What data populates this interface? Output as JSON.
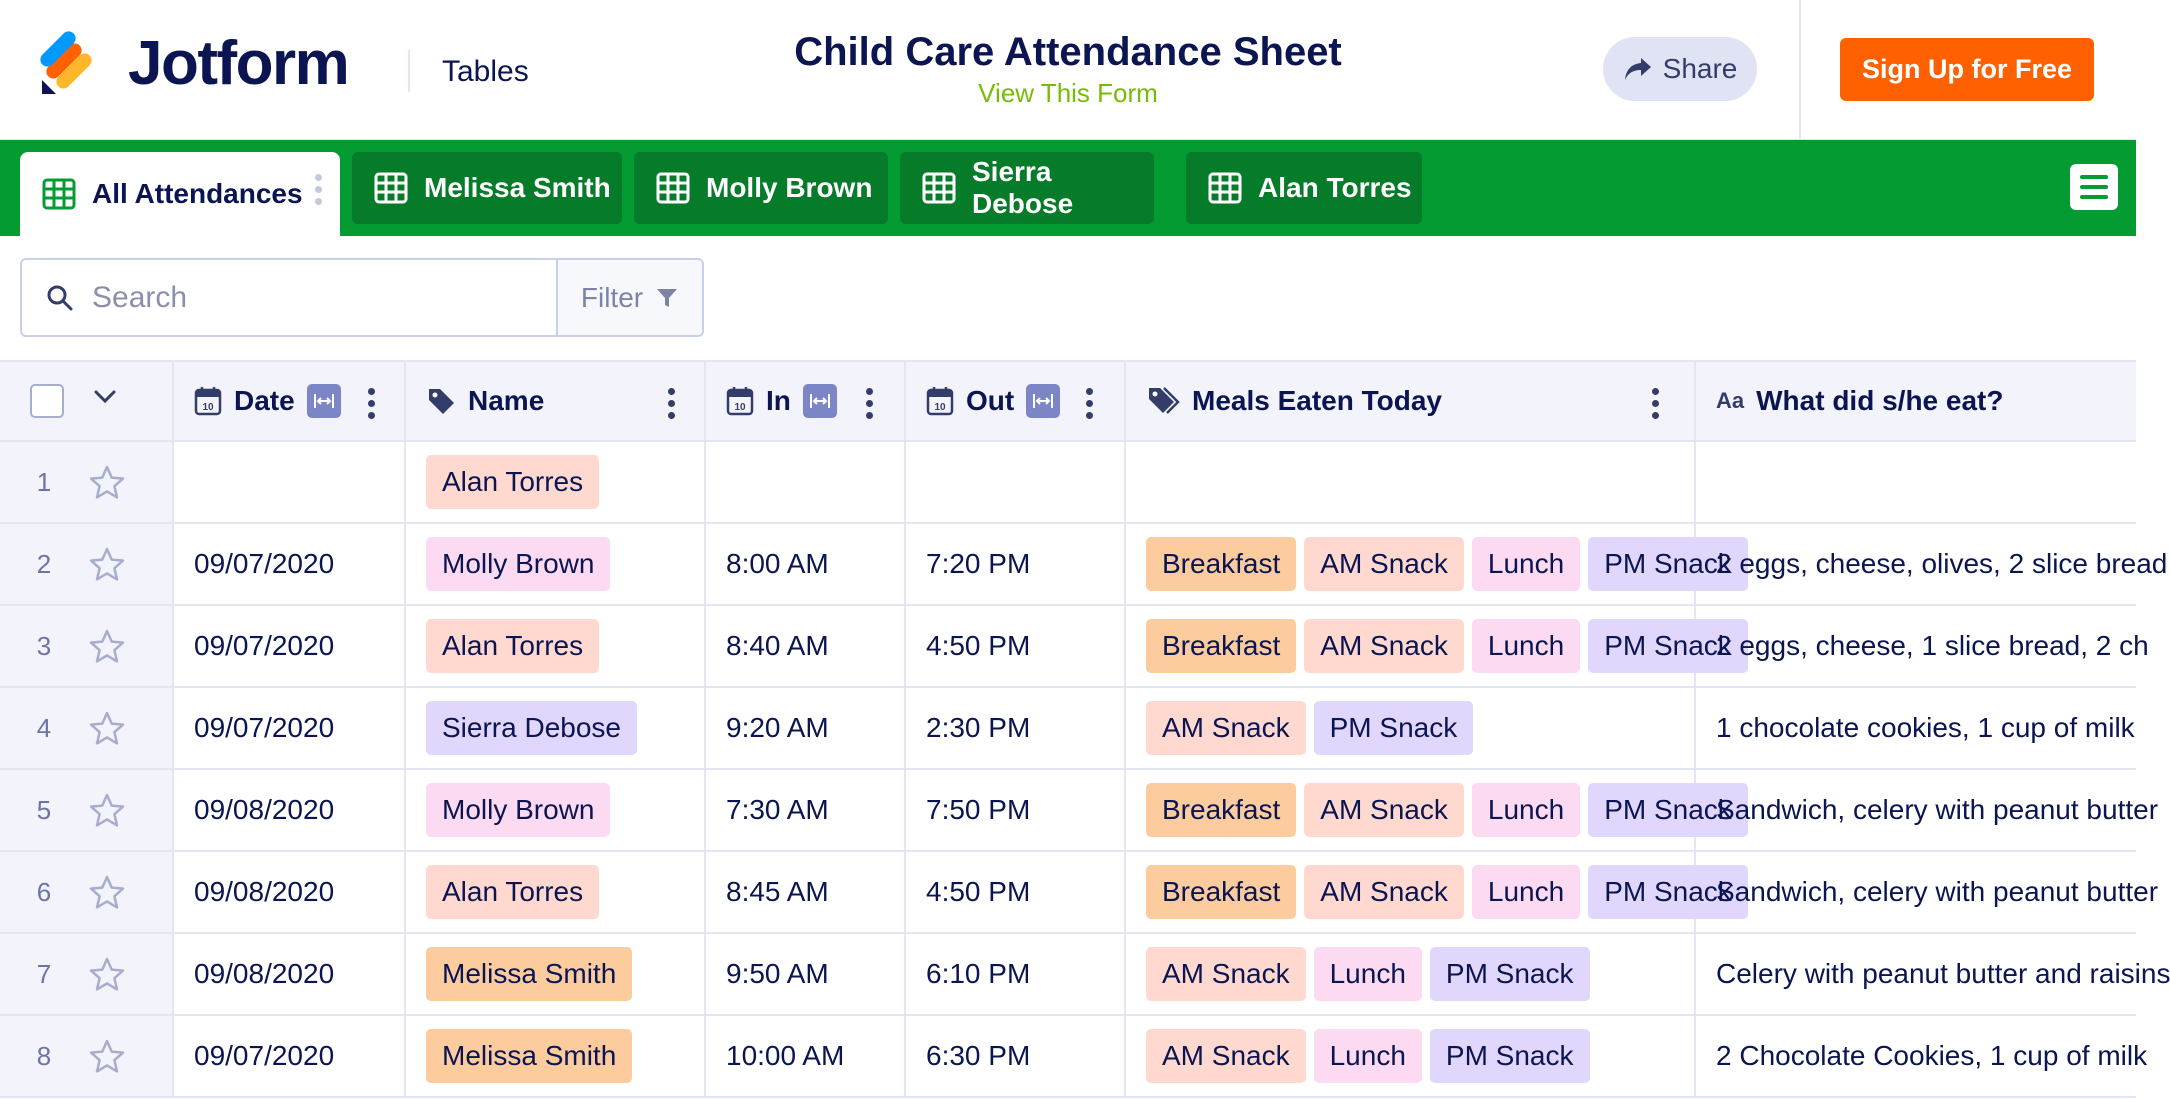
{
  "header": {
    "brand": "Jotform",
    "section": "Tables",
    "title": "Child Care Attendance Sheet",
    "view_form": "View This Form",
    "share": "Share",
    "signup": "Sign Up for Free"
  },
  "tabs": [
    {
      "label": "All Attendances",
      "active": true
    },
    {
      "label": "Melissa Smith",
      "active": false
    },
    {
      "label": "Molly Brown",
      "active": false
    },
    {
      "label": "Sierra Debose",
      "active": false
    },
    {
      "label": "Alan Torres",
      "active": false
    }
  ],
  "search": {
    "placeholder": "Search",
    "filter_label": "Filter"
  },
  "columns": {
    "date": "Date",
    "name": "Name",
    "in": "In",
    "out": "Out",
    "meals": "Meals Eaten Today",
    "what": "What did s/he eat?",
    "text_type_icon": "Aa",
    "calendar_day": "10"
  },
  "colors": {
    "accent_green": "#049b32",
    "signup_orange": "#ff6100",
    "name_colors": {
      "Alan Torres": "#ffd9d0",
      "Molly Brown": "#fcdbf2",
      "Sierra Debose": "#e1d6fb",
      "Melissa Smith": "#fdcc9e"
    },
    "meal_colors": {
      "Breakfast": "#fdcc9e",
      "AM Snack": "#ffd9d0",
      "Lunch": "#fcdbf2",
      "PM Snack": "#e1d6fb"
    }
  },
  "rows": [
    {
      "num": "1",
      "date": "",
      "name": "Alan Torres",
      "in": "",
      "out": "",
      "meals": [],
      "what": ""
    },
    {
      "num": "2",
      "date": "09/07/2020",
      "name": "Molly Brown",
      "in": "8:00 AM",
      "out": "7:20 PM",
      "meals": [
        "Breakfast",
        "AM Snack",
        "Lunch",
        "PM Snack"
      ],
      "what": "2 eggs, cheese, olives, 2 slice bread"
    },
    {
      "num": "3",
      "date": "09/07/2020",
      "name": "Alan Torres",
      "in": "8:40 AM",
      "out": "4:50 PM",
      "meals": [
        "Breakfast",
        "AM Snack",
        "Lunch",
        "PM Snack"
      ],
      "what": "2 eggs, cheese, 1 slice bread, 2 ch"
    },
    {
      "num": "4",
      "date": "09/07/2020",
      "name": "Sierra Debose",
      "in": "9:20 AM",
      "out": "2:30 PM",
      "meals": [
        "AM Snack",
        "PM Snack"
      ],
      "what": "1 chocolate cookies, 1 cup of milk"
    },
    {
      "num": "5",
      "date": "09/08/2020",
      "name": "Molly Brown",
      "in": "7:30 AM",
      "out": "7:50 PM",
      "meals": [
        "Breakfast",
        "AM Snack",
        "Lunch",
        "PM Snack"
      ],
      "what": "Sandwich, celery with peanut butter"
    },
    {
      "num": "6",
      "date": "09/08/2020",
      "name": "Alan Torres",
      "in": "8:45 AM",
      "out": "4:50 PM",
      "meals": [
        "Breakfast",
        "AM Snack",
        "Lunch",
        "PM Snack"
      ],
      "what": "Sandwich, celery with peanut butter"
    },
    {
      "num": "7",
      "date": "09/08/2020",
      "name": "Melissa Smith",
      "in": "9:50 AM",
      "out": "6:10 PM",
      "meals": [
        "AM Snack",
        "Lunch",
        "PM Snack"
      ],
      "what": "Celery with peanut butter and raisins"
    },
    {
      "num": "8",
      "date": "09/07/2020",
      "name": "Melissa Smith",
      "in": "10:00 AM",
      "out": "6:30 PM",
      "meals": [
        "AM Snack",
        "Lunch",
        "PM Snack"
      ],
      "what": "2 Chocolate Cookies, 1 cup of milk"
    }
  ]
}
